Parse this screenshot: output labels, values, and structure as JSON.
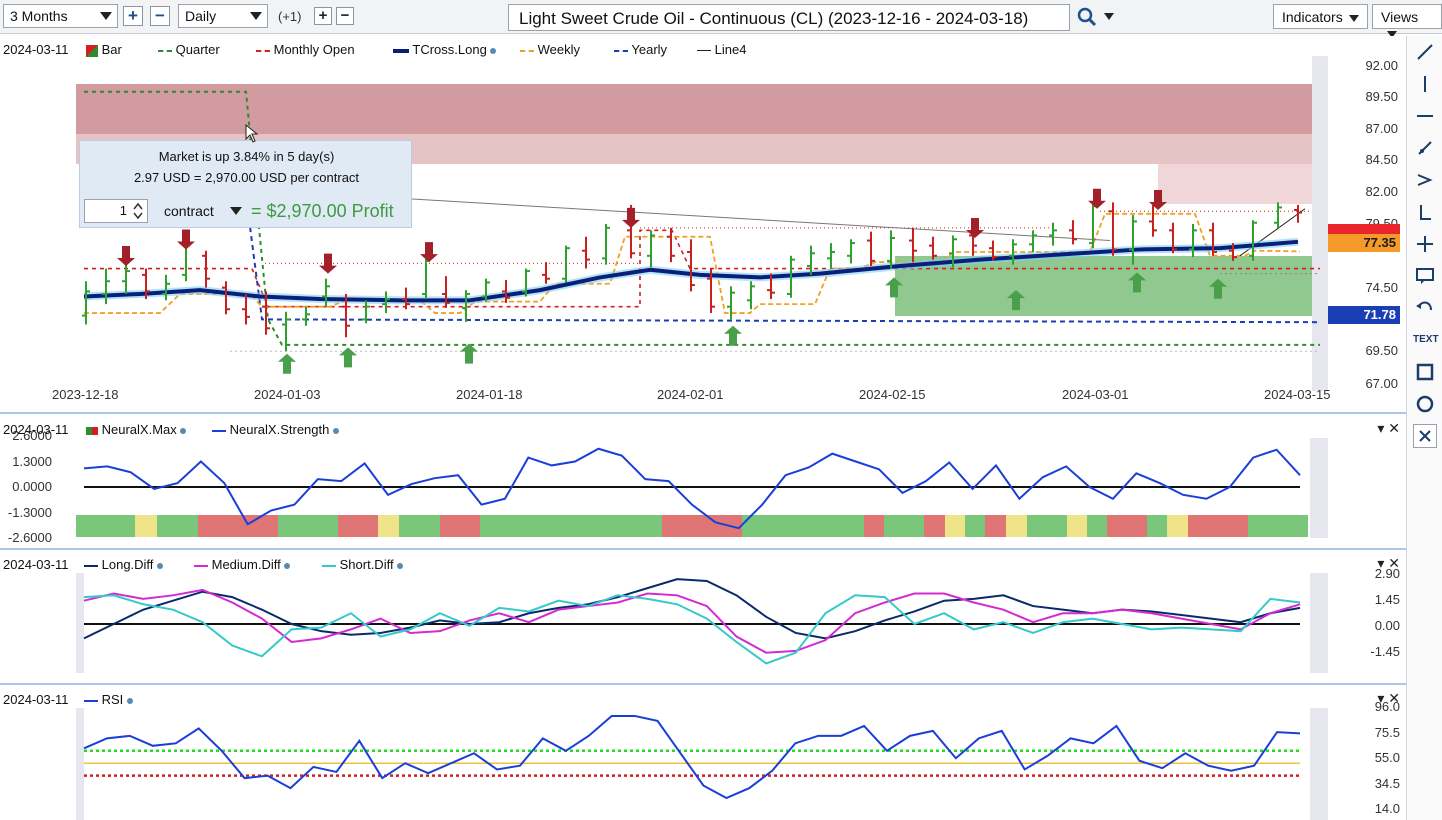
{
  "toolbar": {
    "period": "3 Months",
    "interval": "Daily",
    "offset": "(+1)",
    "title": "Light Sweet Crude Oil - Continuous (CL) (2023-12-16 - 2024-03-18)",
    "indicators": "Indicators",
    "views": "Views"
  },
  "main_pane": {
    "date": "2024-03-11",
    "legend": [
      {
        "label": "Bar",
        "color": "#2e8b2e"
      },
      {
        "label": "Quarter",
        "color": "#2e8b2e"
      },
      {
        "label": "Monthly Open",
        "color": "#d21f1f"
      },
      {
        "label": "TCross.Long",
        "color": "#0a1f7a"
      },
      {
        "label": "Weekly",
        "color": "#f0a020"
      },
      {
        "label": "Yearly",
        "color": "#1a3fb5"
      },
      {
        "label": "Line4",
        "color": "#222222"
      }
    ],
    "y_ticks": [
      "92.00",
      "89.50",
      "87.00",
      "84.50",
      "82.00",
      "79.50",
      "74.50",
      "69.50",
      "67.00"
    ],
    "x_ticks": [
      "2023-12-18",
      "2024-01-03",
      "2024-01-18",
      "2024-02-01",
      "2024-02-15",
      "2024-03-01",
      "2024-03-15"
    ],
    "price_tags": [
      {
        "value": "77.35",
        "bg": "#f39a2a",
        "fg": "#1a1a1a"
      },
      {
        "value": "71.78",
        "bg": "#1a3fb5",
        "fg": "#ffffff"
      }
    ]
  },
  "popup": {
    "line1": "Market is up 3.84% in 5 day(s)",
    "line2": "2.97 USD = 2,970.00 USD per contract",
    "quantity": "1",
    "unit": "contract",
    "profit": "= $2,970.00 Profit"
  },
  "neural_pane": {
    "date": "2024-03-11",
    "legend": [
      {
        "label": "NeuralX.Max",
        "color": "#2e8b2e"
      },
      {
        "label": "NeuralX.Strength",
        "color": "#1a3fd8"
      }
    ],
    "y_ticks": [
      "2.6000",
      "1.3000",
      "0.0000",
      "-1.3000",
      "-2.6000"
    ]
  },
  "diff_pane": {
    "date": "2024-03-11",
    "legend": [
      {
        "label": "Long.Diff",
        "color": "#0a2a6a"
      },
      {
        "label": "Medium.Diff",
        "color": "#d42ad4"
      },
      {
        "label": "Short.Diff",
        "color": "#35c9c9"
      }
    ],
    "y_ticks": [
      "2.90",
      "1.45",
      "0.00",
      "-1.45"
    ]
  },
  "rsi_pane": {
    "date": "2024-03-11",
    "legend": [
      {
        "label": "RSI",
        "color": "#1a3fd8"
      }
    ],
    "y_ticks": [
      "96.0",
      "75.5",
      "55.0",
      "34.5",
      "14.0"
    ]
  },
  "tools": [
    "line-tool-icon",
    "vertical-line-icon",
    "horizontal-line-icon",
    "ray-icon",
    "arrow-tool-icon",
    "fib-icon",
    "crosshair-icon",
    "note-icon",
    "undo-icon",
    "text-icon",
    "rectangle-icon",
    "circle-icon",
    "close-icon"
  ],
  "tool_text": "TEXT"
}
